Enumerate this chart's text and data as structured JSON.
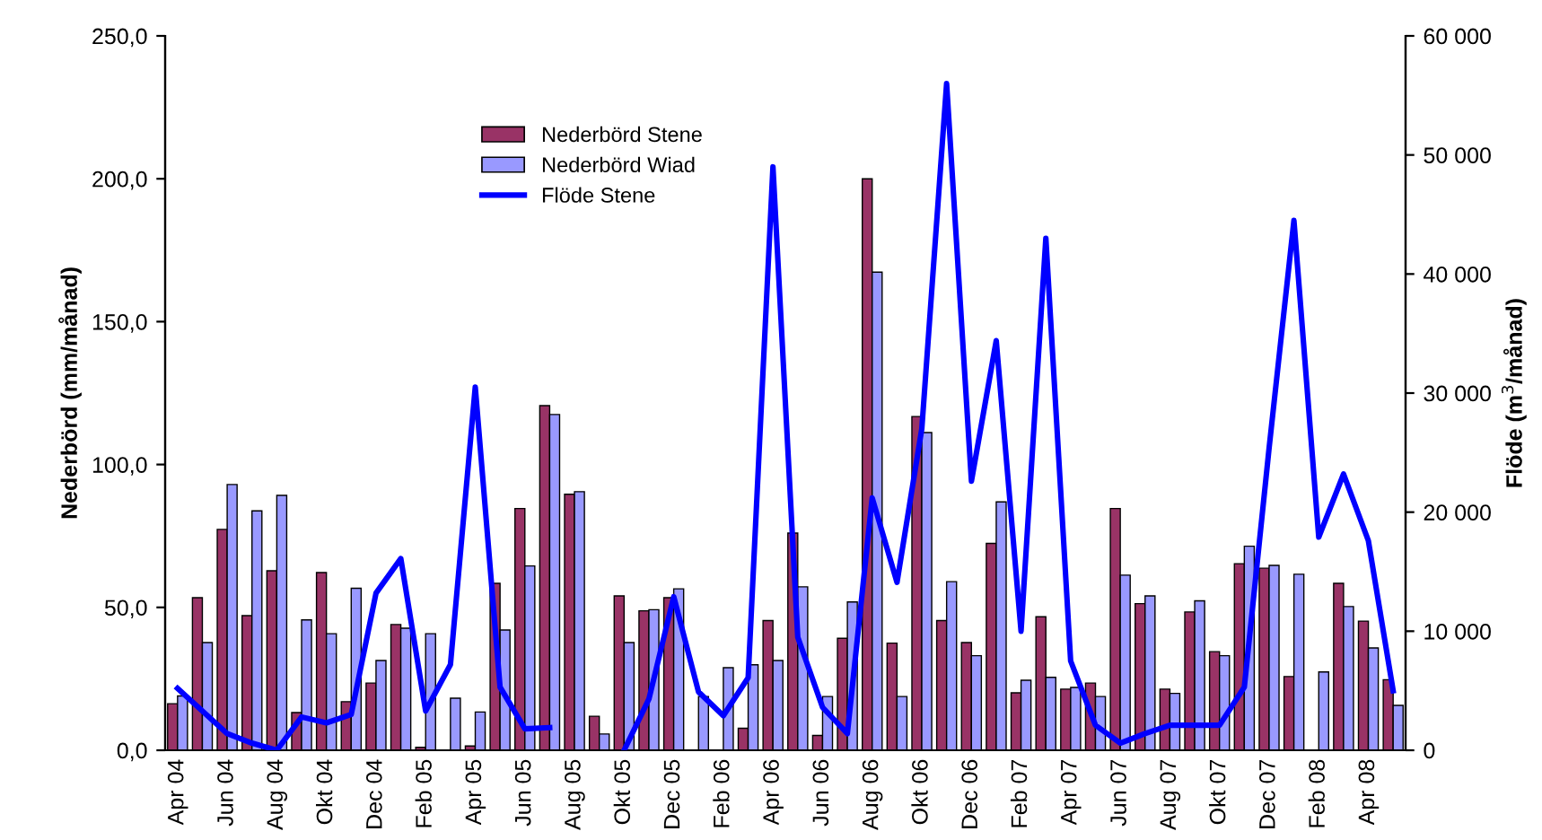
{
  "chart_data": {
    "type": "bar",
    "ylabel": "Nederbörd (mm/månad)",
    "y2label": "Flöde (m$^{3}$/månad)",
    "categories": [
      "Apr 04",
      null,
      "Jun 04",
      null,
      "Aug 04",
      null,
      "Okt 04",
      null,
      "Dec 04",
      null,
      "Feb 05",
      null,
      "Apr 05",
      null,
      "Jun 05",
      null,
      "Aug 05",
      null,
      "Okt 05",
      null,
      "Dec 05",
      null,
      "Feb 06",
      null,
      "Apr 06",
      null,
      "Jun 06",
      null,
      "Aug 06",
      null,
      "Okt 06",
      null,
      "Dec 06",
      null,
      "Feb 07",
      null,
      "Apr 07",
      null,
      "Jun 07",
      null,
      "Aug 07",
      null,
      "Okt 07",
      null,
      "Dec 07",
      null,
      "Feb 08",
      null,
      "Apr 08",
      null
    ],
    "ylim": [
      0,
      250
    ],
    "yticks": [
      {
        "value": 0,
        "label": "0,0"
      },
      {
        "value": 50,
        "label": "50,0"
      },
      {
        "value": 100,
        "label": "100,0"
      },
      {
        "value": 150,
        "label": "150,0"
      },
      {
        "value": 200,
        "label": "200,0"
      },
      {
        "value": 250,
        "label": "250,0"
      }
    ],
    "y2lim": [
      0,
      60000
    ],
    "y2ticks": [
      0,
      {
        "value": 10000,
        "label": "10 000"
      },
      {
        "value": 20000,
        "label": "20 000"
      },
      {
        "value": 30000,
        "label": "30 000"
      },
      {
        "value": 40000,
        "label": "40 000"
      },
      {
        "value": 50000,
        "label": "50 000"
      },
      {
        "value": 60000,
        "label": "60 000"
      }
    ],
    "grid": false,
    "legend": "top",
    "series": [
      {
        "name": "Nederbörd Stene",
        "color": "#993366",
        "values": [
          16.3,
          53.4,
          77.3,
          47.1,
          62.8,
          13.2,
          62.2,
          17.0,
          23.5,
          44.0,
          1.0,
          null,
          1.5,
          58.4,
          84.6,
          120.6,
          89.6,
          11.9,
          54.0,
          48.8,
          53.4,
          null,
          null,
          7.7,
          45.4,
          76.0,
          5.2,
          39.2,
          200.0,
          37.5,
          116.8,
          45.4,
          37.7,
          72.4,
          20.1,
          46.7,
          21.4,
          23.5,
          84.6,
          51.3,
          21.4,
          48.4,
          34.5,
          65.3,
          63.7,
          25.8,
          null,
          58.4,
          45.2,
          24.7
        ]
      },
      {
        "name": "Nederbörd Wiad",
        "color": "#9999ff",
        "values": [
          19,
          37.7,
          93.0,
          83.8,
          89.2,
          45.6,
          40.8,
          56.7,
          31.4,
          42.7,
          40.8,
          18.2,
          13.4,
          42.1,
          64.5,
          117.5,
          90.5,
          5.7,
          37.7,
          49.2,
          56.5,
          18.8,
          28.9,
          29.9,
          31.4,
          57.2,
          18.8,
          51.9,
          167.3,
          18.8,
          111.2,
          59.0,
          33.1,
          86.9,
          24.5,
          25.5,
          22.0,
          18.8,
          61.3,
          54.0,
          19.9,
          52.3,
          33.1,
          71.4,
          64.7,
          61.6,
          27.4,
          50.3,
          35.8,
          15.7
        ]
      },
      {
        "name": "Flöde Stene",
        "type": "line",
        "axis": "y2",
        "color": "#0000ff",
        "line_style": "solid",
        "values": [
          5200,
          3300,
          1400,
          600,
          0,
          2800,
          2300,
          3000,
          13200,
          16100,
          3300,
          7200,
          30500,
          5300,
          1800,
          1900,
          null,
          null,
          0,
          4300,
          12900,
          4900,
          2900,
          6100,
          49000,
          9500,
          3600,
          1400,
          21200,
          14100,
          27000,
          56000,
          22600,
          34400,
          10000,
          43000,
          7500,
          2100,
          600,
          1400,
          2100,
          2100,
          2100,
          5300,
          25400,
          44500,
          17900,
          23200,
          17600,
          5000
        ]
      }
    ]
  }
}
